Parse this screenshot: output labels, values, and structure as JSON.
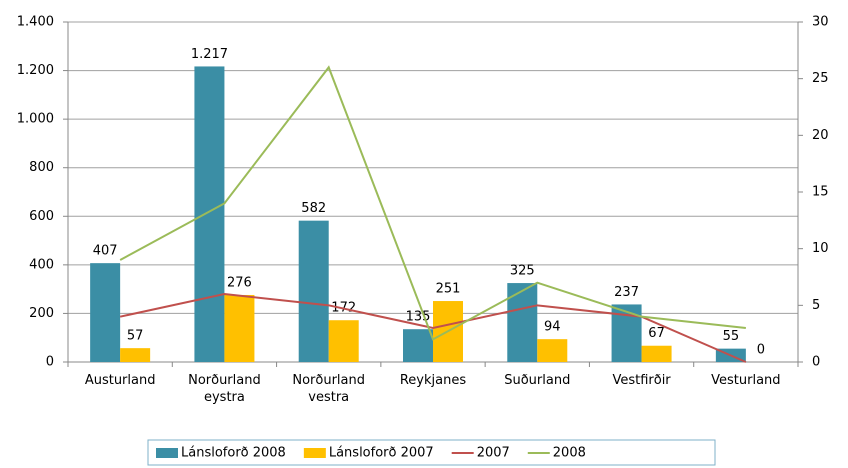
{
  "chart_data": {
    "type": "bar",
    "categories": [
      "Austurland",
      "Norðurland eystra",
      "Norðurland vestra",
      "Reykjanes",
      "Suðurland",
      "Vestfirðir",
      "Vesturland"
    ],
    "series": [
      {
        "name": "Lánsloforð 2008",
        "color": "#3b8ea5",
        "values": [
          407,
          1217,
          582,
          135,
          325,
          237,
          55
        ],
        "value_labels": [
          "407",
          "1.217",
          "582",
          "135",
          "325",
          "237",
          "55"
        ]
      },
      {
        "name": "Lánsloforð 2007",
        "color": "#ffc000",
        "values": [
          57,
          276,
          172,
          251,
          94,
          67,
          0
        ]
      },
      {
        "name": "2007",
        "type": "line",
        "axis": "y2",
        "color": "#c0504d",
        "values": [
          4,
          6,
          5,
          3,
          5,
          4,
          0
        ]
      },
      {
        "name": "2008",
        "type": "line",
        "axis": "y2",
        "color": "#9bbb59",
        "values": [
          9,
          14,
          26,
          2,
          7,
          4,
          3
        ]
      }
    ],
    "ylim": [
      0,
      1400
    ],
    "yticks": [
      0,
      200,
      400,
      600,
      800,
      {
        "value": 1000,
        "label": "1.000"
      },
      {
        "value": 1200,
        "label": "1.200"
      },
      {
        "value": 1400,
        "label": "1.400"
      }
    ],
    "y2lim": [
      0,
      30
    ],
    "y2ticks": [
      0,
      5,
      10,
      15,
      20,
      25,
      30
    ],
    "grid": true,
    "legend": "bottom"
  }
}
